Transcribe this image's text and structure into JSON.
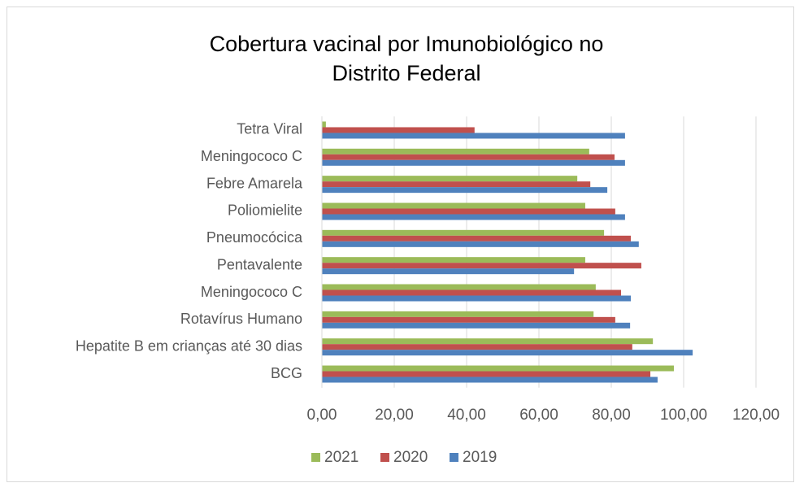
{
  "chart_data": {
    "type": "hbar",
    "title": [
      "Cobertura vacinal por Imunobiológico no",
      "Distrito Federal"
    ],
    "categories": [
      "BCG",
      "Hepatite B em crianças até 30 dias",
      "Rotavírus Humano",
      "Meningococo C",
      "Pentavalente",
      "Pneumocócica",
      "Poliomielite",
      "Febre Amarela",
      "Meningococo C ",
      "Tetra Viral"
    ],
    "series": [
      {
        "name": "2021",
        "color": "#9bbb59",
        "values": [
          97.3,
          91.5,
          75.1,
          75.7,
          72.8,
          78.0,
          72.8,
          70.6,
          73.9,
          1.1
        ]
      },
      {
        "name": "2020",
        "color": "#c0504d",
        "values": [
          90.8,
          85.8,
          81.1,
          82.7,
          88.3,
          85.4,
          81.1,
          74.2,
          80.9,
          42.2
        ]
      },
      {
        "name": "2019",
        "color": "#4f81bd",
        "values": [
          92.8,
          102.5,
          85.2,
          85.4,
          69.7,
          87.6,
          83.8,
          78.9,
          83.8,
          83.8
        ]
      }
    ],
    "xlim": [
      0,
      120
    ],
    "xticks": [
      {
        "value": 0,
        "label": "0,00"
      },
      {
        "value": 20,
        "label": "20,00"
      },
      {
        "value": 40,
        "label": "40,00"
      },
      {
        "value": 60,
        "label": "60,00"
      },
      {
        "value": 80,
        "label": "80,00"
      },
      {
        "value": 100,
        "label": "100,00"
      },
      {
        "value": 120,
        "label": "120,00"
      }
    ],
    "grid": true,
    "legend": "bottom"
  }
}
